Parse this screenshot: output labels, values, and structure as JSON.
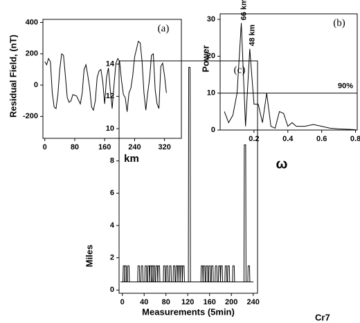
{
  "chart_data": [
    {
      "type": "line",
      "panel_label": "(a)",
      "y_label": "Residual Field, (nT)",
      "x_label": "km",
      "color": "#000000",
      "x": [
        0,
        5,
        10,
        15,
        20,
        25,
        30,
        35,
        40,
        45,
        50,
        55,
        60,
        65,
        70,
        75,
        85,
        95,
        100,
        105,
        110,
        115,
        120,
        125,
        130,
        135,
        140,
        145,
        150,
        155,
        160,
        165,
        170,
        175,
        180,
        185,
        190,
        195,
        200,
        205,
        210,
        215,
        220,
        225,
        230,
        235,
        240,
        245,
        250,
        255,
        260,
        265,
        270,
        275,
        280,
        285,
        290,
        295,
        300,
        305,
        310,
        315,
        320,
        325
      ],
      "values": [
        150,
        130,
        170,
        150,
        -50,
        -140,
        -150,
        -60,
        100,
        200,
        190,
        60,
        -80,
        -110,
        -100,
        -60,
        -70,
        -120,
        -50,
        100,
        130,
        60,
        -20,
        -140,
        -160,
        -100,
        50,
        90,
        100,
        20,
        -120,
        50,
        110,
        -30,
        -150,
        0,
        140,
        170,
        150,
        30,
        -60,
        -80,
        -170,
        -50,
        -20,
        60,
        180,
        230,
        280,
        270,
        150,
        -50,
        -160,
        -50,
        40,
        190,
        200,
        -30,
        -120,
        -150,
        120,
        140,
        60,
        -50
      ],
      "xlim": [
        -5,
        365
      ],
      "ylim": [
        -340,
        420
      ],
      "xticks": [
        0,
        80,
        160,
        240,
        320
      ],
      "yticks": [
        -200,
        0,
        200,
        400
      ]
    },
    {
      "type": "line",
      "panel_label": "(b)",
      "y_label": "Power",
      "x_label": "ω",
      "color": "#000000",
      "x": [
        0.025,
        0.05,
        0.075,
        0.1,
        0.125,
        0.15,
        0.175,
        0.2,
        0.225,
        0.25,
        0.275,
        0.3,
        0.325,
        0.35,
        0.375,
        0.4,
        0.425,
        0.45,
        0.5,
        0.55,
        0.6,
        0.65,
        0.7,
        0.75,
        0.8
      ],
      "values": [
        5,
        2,
        4,
        10,
        29,
        1,
        22,
        7,
        7,
        2,
        10,
        1,
        0.5,
        5,
        4.5,
        1,
        2,
        1,
        1,
        1.5,
        1,
        0.5,
        0.3,
        0.2,
        0.1
      ],
      "threshold": {
        "value": 10,
        "label": "90%"
      },
      "annotations": [
        {
          "text": "66 km",
          "x": 0.125
        },
        {
          "text": "48 km",
          "x": 0.175
        }
      ],
      "xlim": [
        0,
        0.81
      ],
      "ylim": [
        0,
        31.5
      ],
      "xticks": [
        0.2,
        0.4,
        0.6,
        0.8
      ],
      "yticks": [
        0,
        10,
        20,
        30
      ]
    },
    {
      "type": "spike",
      "panel_label": "(c)",
      "y_label": "Miles",
      "x_label": "Measurements (5min)",
      "color": "#000000",
      "baseline": 0.5,
      "x": [
        3,
        6,
        11,
        30,
        36,
        43,
        48,
        52,
        55,
        58,
        63,
        67,
        77,
        82,
        88,
        95,
        100,
        104,
        108,
        112,
        123,
        146,
        150,
        155,
        160,
        165,
        172,
        178,
        182,
        190,
        195,
        204,
        225,
        232
      ],
      "values": [
        1.5,
        1.5,
        1.5,
        1.5,
        1.5,
        1.5,
        1.5,
        1.5,
        1.5,
        1.5,
        1.5,
        1.5,
        1.5,
        1.5,
        1.5,
        1.5,
        1.5,
        1.5,
        1.5,
        1.5,
        13.8,
        1.5,
        1.5,
        1.5,
        1.5,
        1.5,
        1.5,
        1.5,
        1.5,
        1.5,
        1.5,
        1.5,
        9,
        1.5
      ],
      "xlim": [
        -6,
        248
      ],
      "ylim": [
        -0.2,
        14.2
      ],
      "xticks": [
        0,
        40,
        80,
        120,
        160,
        200,
        240
      ],
      "yticks": [
        0,
        2,
        4,
        6,
        8,
        10,
        12,
        14
      ]
    }
  ],
  "figure_label": "Cr7"
}
